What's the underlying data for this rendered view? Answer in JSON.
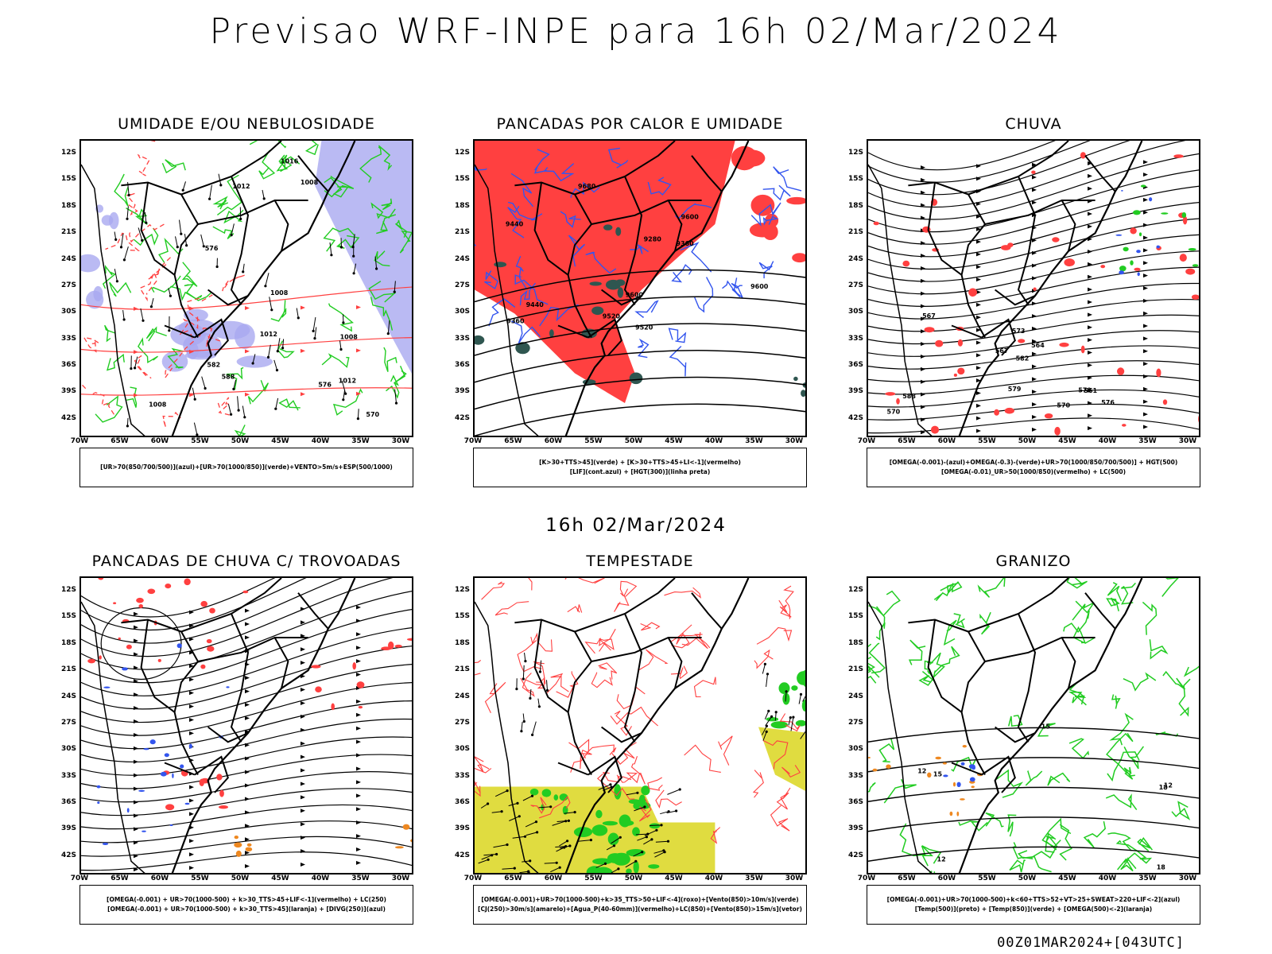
{
  "title": "Previsao WRF-INPE  para 16h 02/Mar/2024",
  "mid_time": "16h 02/Mar/2024",
  "footer": "00Z01MAR2024+[043UTC]",
  "lat_labels": [
    "12S",
    "15S",
    "18S",
    "21S",
    "24S",
    "27S",
    "30S",
    "33S",
    "36S",
    "39S",
    "42S"
  ],
  "lon_labels": [
    "70W",
    "65W",
    "60W",
    "55W",
    "50W",
    "45W",
    "40W",
    "35W",
    "30W"
  ],
  "colors": {
    "red": "#ff4040",
    "green": "#22cc22",
    "blue": "#3355ee",
    "lavender": "#a9a9f0",
    "yellow": "#e0dc40",
    "orange": "#ee8820",
    "dark_teal": "#2f5650"
  },
  "panels": [
    {
      "title": "UMIDADE E/OU NEBULOSIDADE",
      "legend": [
        "[UR>70(850/700/500)](azul)+[UR>70(1000/850)](verde)+VENTO>5m/s+ESP(500/1000)"
      ],
      "contour_labels": [
        "1008",
        "1008",
        "1008",
        "1012",
        "1012",
        "1016",
        "1012",
        "1008",
        "576",
        "582",
        "570",
        "576",
        "588"
      ]
    },
    {
      "title": "PANCADAS POR CALOR E UMIDADE",
      "legend": [
        "[K>30+TTS>45](verde) + [K>30+TTS>45+LI<-1](vermelho)",
        "[LIF](cont.azul) + [HGT(300)](linha preta)"
      ],
      "contour_labels": [
        "9680",
        "9600",
        "9600",
        "9520",
        "9520",
        "9440",
        "9440",
        "9360",
        "9360",
        "9280",
        "9600"
      ]
    },
    {
      "title": "CHUVA",
      "legend": [
        "[OMEGA(-0.001)-(azul)+OMEGA(-0.3)-(verde)+UR>70(1000/850/700/500)] + HGT(500)",
        "[OMEGA(-0.01)_UR>50(1000/850)(vermelho) + LC(500)"
      ],
      "contour_labels": [
        "588",
        "582",
        "579",
        "576",
        "573",
        "570",
        "567",
        "564",
        "561",
        "570",
        "567",
        "579"
      ]
    },
    {
      "title": "PANCADAS DE CHUVA C/ TROVOADAS",
      "legend": [
        "[OMEGA(-0.001) + UR>70(1000-500) + k>30_TTS>45+LIF<-1](vermelho) + LC(250)",
        "[OMEGA(-0.001) + UR>70(1000-500) + k>30_TTS>45](laranja) + [DIVG(250)](azul)"
      ],
      "contour_labels": []
    },
    {
      "title": "TEMPESTADE",
      "legend": [
        "[OMEGA(-0.001)+UR>70(1000-500)+k>35_TTS>50+LIF<-4](roxo)+[Vento(850)>10m/s](verde)",
        "[CJ(250)>30m/s](amarelo)+[Agua_P(40-60mm)](vermelho)+LC(850)+[Vento(850)>15m/s](vetor)"
      ],
      "contour_labels": []
    },
    {
      "title": "GRANIZO",
      "legend": [
        "[OMEGA(-0.001)+UR>70(1000-500)+k<60+TTS>52+VT>25+SWEAT>220+LIF<-2](azul)",
        "[Temp(500)](preto) + [Temp(850)](verde) + [OMEGA(500)<-2](laranja)"
      ],
      "contour_labels": [
        "12",
        "12",
        "15",
        "18",
        "12",
        "15",
        "18"
      ]
    }
  ]
}
